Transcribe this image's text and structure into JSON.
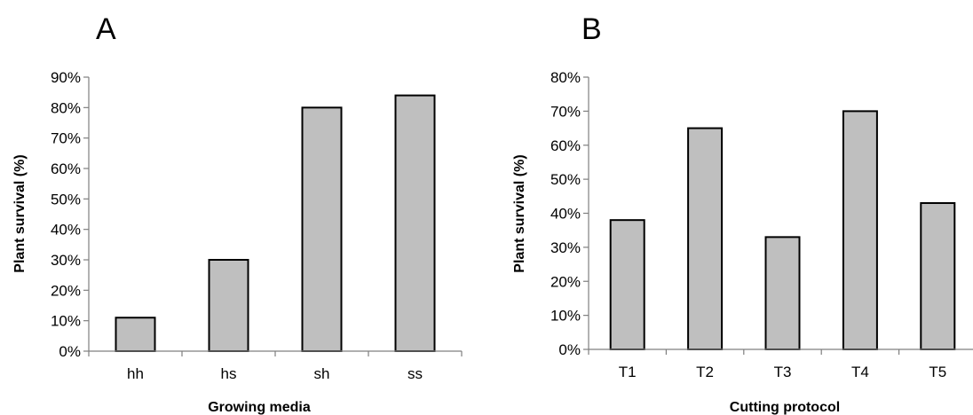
{
  "chart_data": [
    {
      "type": "bar",
      "panel_label": "A",
      "title": "",
      "xlabel": "Growing media",
      "ylabel": "Plant survival (%)",
      "categories": [
        "hh",
        "hs",
        "sh",
        "ss"
      ],
      "values": [
        11,
        30,
        80,
        84
      ],
      "ylim": [
        0,
        90
      ],
      "ytick_step": 10,
      "ytick_format": "percent",
      "grid": false,
      "legend": "none",
      "bar_color": "#bfbfbf",
      "bar_edge_color": "#000000"
    },
    {
      "type": "bar",
      "panel_label": "B",
      "title": "",
      "xlabel": "Cutting protocol",
      "ylabel": "Plant survival (%)",
      "categories": [
        "T1",
        "T2",
        "T3",
        "T4",
        "T5"
      ],
      "values": [
        38,
        65,
        33,
        70,
        43
      ],
      "ylim": [
        0,
        80
      ],
      "ytick_step": 10,
      "ytick_format": "percent",
      "grid": false,
      "legend": "none",
      "bar_color": "#bfbfbf",
      "bar_edge_color": "#000000"
    }
  ]
}
